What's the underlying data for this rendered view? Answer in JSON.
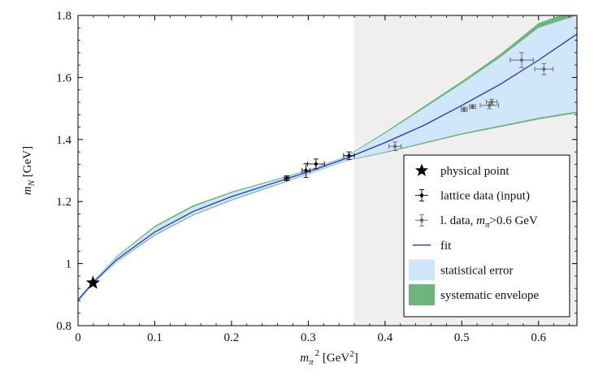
{
  "chart_data": {
    "type": "scatter",
    "title": "",
    "xlabel": "",
    "ylabel": "",
    "xlabel_parts": {
      "base": "m",
      "subscript": "π",
      "superscript": "2",
      "unit_prefix": "[GeV",
      "unit_sup": "2",
      "unit_suffix": "]"
    },
    "ylabel_parts": {
      "base": "m",
      "subscript": "N",
      "unit": "[GeV]"
    },
    "xlim": [
      0,
      0.65
    ],
    "ylim": [
      0.8,
      1.8
    ],
    "xticks": [
      0,
      0.1,
      0.2,
      0.3,
      0.4,
      0.5,
      0.6
    ],
    "xtick_labels": [
      "0",
      "0.1",
      "0.2",
      "0.3",
      "0.4",
      "0.5",
      "0.6"
    ],
    "yticks": [
      0.8,
      1.0,
      1.2,
      1.4,
      1.6,
      1.8
    ],
    "ytick_labels": [
      "0.8",
      "1",
      "1.2",
      "1.4",
      "1.6",
      "1.8"
    ],
    "shaded_region": {
      "x_from": 0.36,
      "x_to": 0.65,
      "color": "#efefef"
    },
    "physical_point": {
      "x": 0.0195,
      "y": 0.938
    },
    "lattice_input": [
      {
        "x": 0.272,
        "y": 1.275,
        "xerr": 0.003,
        "yerr": 0.008
      },
      {
        "x": 0.297,
        "y": 1.3,
        "xerr": 0.005,
        "yerr": 0.022
      },
      {
        "x": 0.31,
        "y": 1.321,
        "xerr": 0.011,
        "yerr": 0.016
      },
      {
        "x": 0.353,
        "y": 1.348,
        "xerr": 0.007,
        "yerr": 0.012
      }
    ],
    "lattice_above": [
      {
        "x": 0.413,
        "y": 1.378,
        "xerr": 0.008,
        "yerr": 0.014
      },
      {
        "x": 0.503,
        "y": 1.497,
        "xerr": 0.004,
        "yerr": 0.007
      },
      {
        "x": 0.514,
        "y": 1.506,
        "xerr": 0.004,
        "yerr": 0.006
      },
      {
        "x": 0.536,
        "y": 1.51,
        "xerr": 0.012,
        "yerr": 0.011
      },
      {
        "x": 0.539,
        "y": 1.521,
        "xerr": 0.007,
        "yerr": 0.009
      },
      {
        "x": 0.578,
        "y": 1.656,
        "xerr": 0.015,
        "yerr": 0.024
      },
      {
        "x": 0.607,
        "y": 1.627,
        "xerr": 0.012,
        "yerr": 0.018
      }
    ],
    "fit_curve": {
      "x": [
        0.0,
        0.02,
        0.05,
        0.1,
        0.15,
        0.2,
        0.25,
        0.3,
        0.35,
        0.4,
        0.45,
        0.5,
        0.55,
        0.6,
        0.65
      ],
      "y": [
        0.882,
        0.94,
        1.012,
        1.102,
        1.168,
        1.216,
        1.256,
        1.296,
        1.34,
        1.39,
        1.445,
        1.51,
        1.578,
        1.656,
        1.74
      ]
    },
    "stat_band": {
      "x": [
        0.0,
        0.02,
        0.05,
        0.1,
        0.15,
        0.2,
        0.25,
        0.3,
        0.35,
        0.4,
        0.45,
        0.5,
        0.55,
        0.6,
        0.65
      ],
      "upper": [
        0.886,
        0.944,
        1.02,
        1.117,
        1.183,
        1.228,
        1.264,
        1.3,
        1.345,
        1.42,
        1.5,
        1.58,
        1.665,
        1.76,
        1.8
      ],
      "lower": [
        0.878,
        0.936,
        1.006,
        1.094,
        1.158,
        1.206,
        1.248,
        1.29,
        1.333,
        1.36,
        1.39,
        1.42,
        1.445,
        1.47,
        1.49
      ]
    },
    "sys_band": {
      "x": [
        0.0,
        0.02,
        0.05,
        0.1,
        0.15,
        0.2,
        0.25,
        0.3,
        0.35,
        0.4,
        0.45,
        0.5,
        0.55,
        0.6,
        0.65
      ],
      "upper": [
        0.887,
        0.945,
        1.023,
        1.122,
        1.188,
        1.232,
        1.267,
        1.302,
        1.347,
        1.424,
        1.506,
        1.588,
        1.675,
        1.775,
        1.82
      ],
      "lower": [
        0.877,
        0.935,
        1.004,
        1.09,
        1.155,
        1.203,
        1.245,
        1.288,
        1.331,
        1.357,
        1.386,
        1.416,
        1.44,
        1.465,
        1.485
      ]
    },
    "legend": {
      "position": "bottom-right",
      "items": [
        {
          "key": "physical",
          "label": "physical point"
        },
        {
          "key": "input",
          "label": "lattice data (input)"
        },
        {
          "key": "above",
          "label": "l. data, ",
          "label_math": "m",
          "label_sub": "π",
          "label_tail": ">0.6 GeV"
        },
        {
          "key": "fit",
          "label": "fit"
        },
        {
          "key": "stat",
          "label": "statistical error"
        },
        {
          "key": "sys",
          "label": "systematic envelope"
        }
      ]
    },
    "colors": {
      "fit": "#2236c8",
      "stat": "#cfe6fb",
      "sys": "#6db57c",
      "input_marker": "#000000",
      "above_marker": "#666666",
      "shade": "#efefef"
    }
  }
}
